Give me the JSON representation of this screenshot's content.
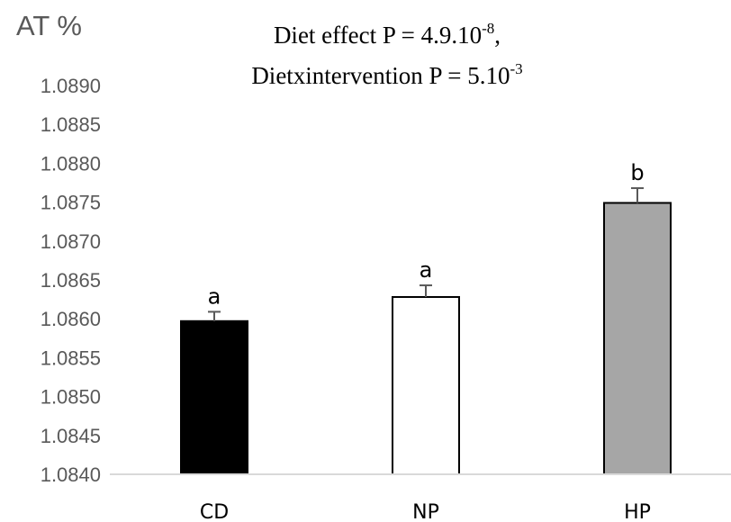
{
  "chart_data": {
    "type": "bar",
    "ylabel": "AT %",
    "title": {
      "line1": {
        "text": "Diet effect P = 4.9.10",
        "sup": "-8",
        "suffix": ","
      },
      "line2": {
        "text": "Dietxintervention P = 5.10",
        "sup": "-3",
        "suffix": ""
      }
    },
    "categories": [
      "CD",
      "NP",
      "HP"
    ],
    "values": [
      1.08597,
      1.08628,
      1.08749
    ],
    "errors": [
      0.00012,
      0.00015,
      0.00019
    ],
    "significance": [
      "a",
      "a",
      "b"
    ],
    "bar_colors": [
      "#000000",
      "#ffffff",
      "#a6a6a6"
    ],
    "ylim": [
      1.084,
      1.089
    ],
    "yticks": [
      "1.0840",
      "1.0845",
      "1.0850",
      "1.0855",
      "1.0860",
      "1.0865",
      "1.0870",
      "1.0875",
      "1.0880",
      "1.0885",
      "1.0890"
    ],
    "grid": false,
    "legend": "none"
  }
}
